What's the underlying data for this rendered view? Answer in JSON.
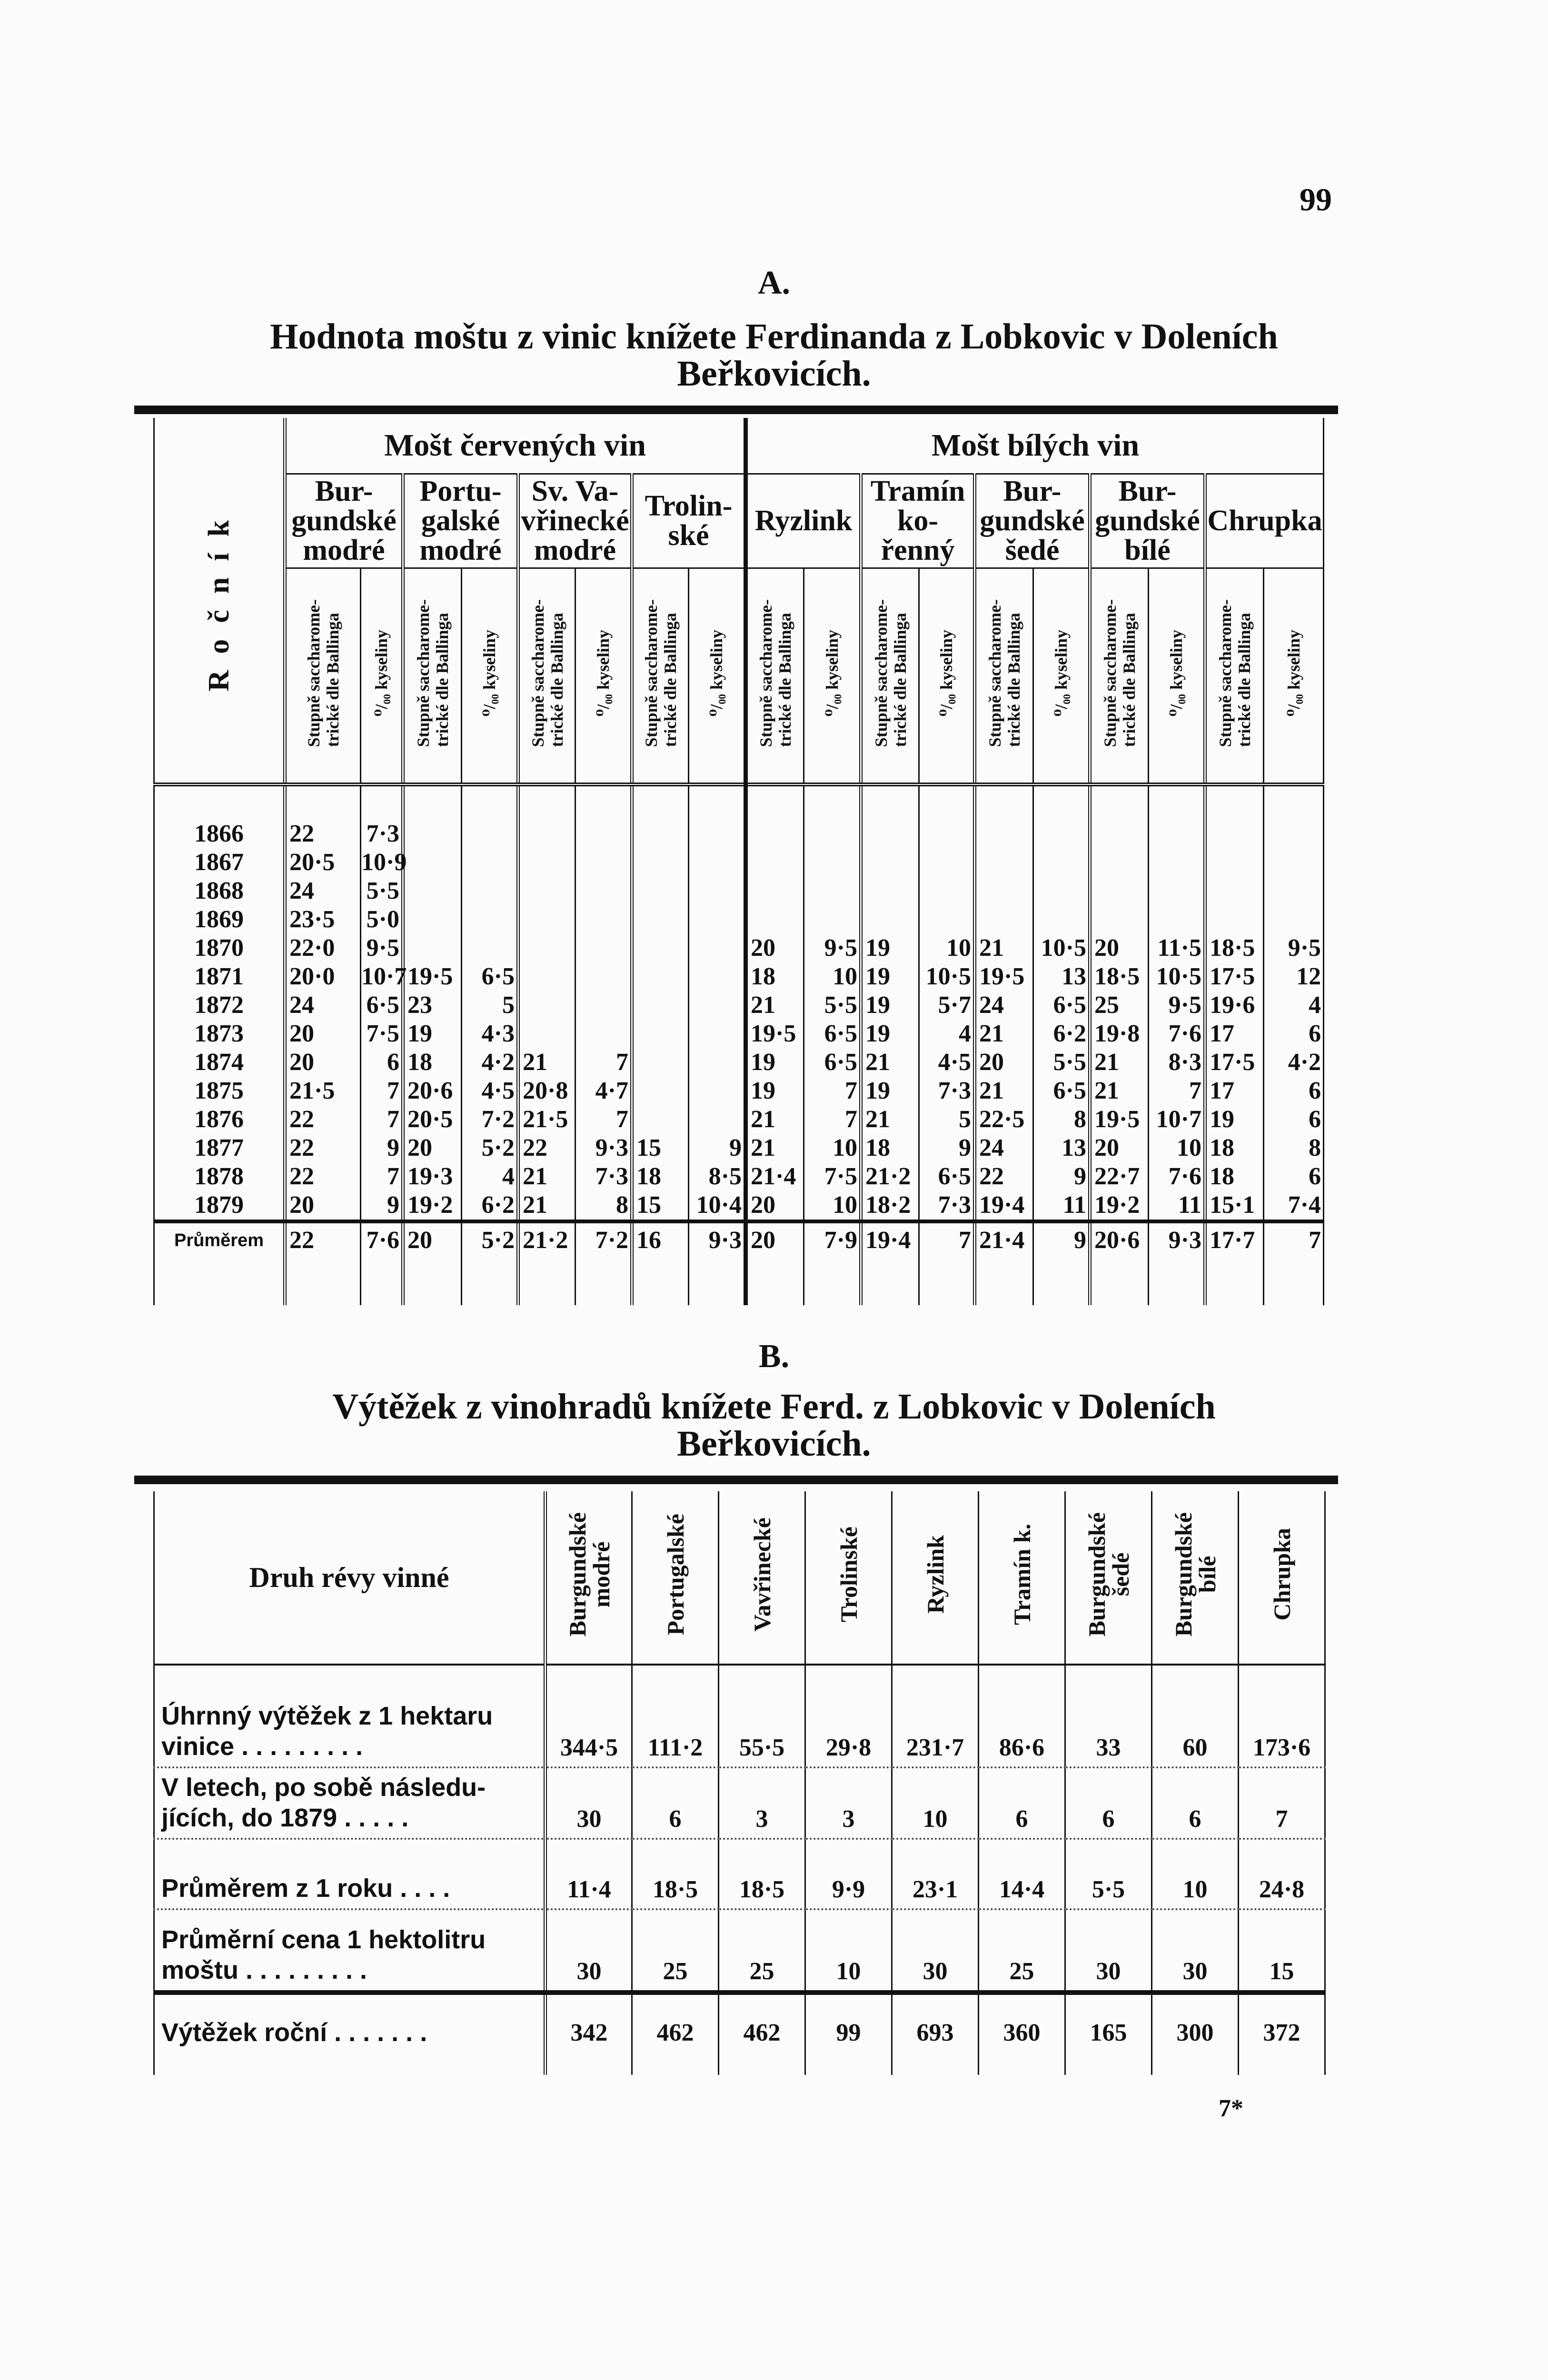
{
  "page_number": "99",
  "section_a": {
    "letter": "A.",
    "title_line1": "Hodnota moštu z vinic knížete Ferdinanda z Lobkovic v Doleních",
    "title_line2": "Beřkovicích.",
    "table": {
      "row_header": "Ročník",
      "groups": [
        "Mošt červených vin",
        "Mošt bílých vin"
      ],
      "varieties": [
        "Bur-\ngundské\nmodré",
        "Portu-\ngalské\nmodré",
        "Sv. Va-\nvřinecké\nmodré",
        "Trolin-\nské",
        "Ryzlink",
        "Tramín\nko-\nřenný",
        "Bur-\ngundské\nšedé",
        "Bur-\ngundské\nbílé",
        "Chrupka"
      ],
      "sub_headers": {
        "sugar": "Stupně saccharome-\ntrické dle Ballinga",
        "acid": "⁰/₀₀ kyseliny"
      },
      "rows": [
        {
          "year": "1866",
          "values": [
            "22",
            "7·3",
            "",
            "",
            "",
            "",
            "",
            "",
            "",
            "",
            "",
            "",
            "",
            "",
            "",
            "",
            "",
            ""
          ]
        },
        {
          "year": "1867",
          "values": [
            "20·5",
            "10·9",
            "",
            "",
            "",
            "",
            "",
            "",
            "",
            "",
            "",
            "",
            "",
            "",
            "",
            "",
            "",
            ""
          ]
        },
        {
          "year": "1868",
          "values": [
            "24",
            "5·5",
            "",
            "",
            "",
            "",
            "",
            "",
            "",
            "",
            "",
            "",
            "",
            "",
            "",
            "",
            "",
            ""
          ]
        },
        {
          "year": "1869",
          "values": [
            "23·5",
            "5·0",
            "",
            "",
            "",
            "",
            "",
            "",
            "",
            "",
            "",
            "",
            "",
            "",
            "",
            "",
            "",
            ""
          ]
        },
        {
          "year": "1870",
          "values": [
            "22·0",
            "9·5",
            "",
            "",
            "",
            "",
            "",
            "",
            "20",
            "9·5",
            "19",
            "10",
            "21",
            "10·5",
            "20",
            "11·5",
            "18·5",
            "9·5"
          ]
        },
        {
          "year": "1871",
          "values": [
            "20·0",
            "10·7",
            "19·5",
            "6·5",
            "",
            "",
            "",
            "",
            "18",
            "10",
            "19",
            "10·5",
            "19·5",
            "13",
            "18·5",
            "10·5",
            "17·5",
            "12"
          ]
        },
        {
          "year": "1872",
          "values": [
            "24",
            "6·5",
            "23",
            "5",
            "",
            "",
            "",
            "",
            "21",
            "5·5",
            "19",
            "5·7",
            "24",
            "6·5",
            "25",
            "9·5",
            "19·6",
            "4"
          ]
        },
        {
          "year": "1873",
          "values": [
            "20",
            "7·5",
            "19",
            "4·3",
            "",
            "",
            "",
            "",
            "19·5",
            "6·5",
            "19",
            "4",
            "21",
            "6·2",
            "19·8",
            "7·6",
            "17",
            "6"
          ]
        },
        {
          "year": "1874",
          "values": [
            "20",
            "6",
            "18",
            "4·2",
            "21",
            "7",
            "",
            "",
            "19",
            "6·5",
            "21",
            "4·5",
            "20",
            "5·5",
            "21",
            "8·3",
            "17·5",
            "4·2"
          ]
        },
        {
          "year": "1875",
          "values": [
            "21·5",
            "7",
            "20·6",
            "4·5",
            "20·8",
            "4·7",
            "",
            "",
            "19",
            "7",
            "19",
            "7·3",
            "21",
            "6·5",
            "21",
            "7",
            "17",
            "6"
          ]
        },
        {
          "year": "1876",
          "values": [
            "22",
            "7",
            "20·5",
            "7·2",
            "21·5",
            "7",
            "",
            "",
            "21",
            "7",
            "21",
            "5",
            "22·5",
            "8",
            "19·5",
            "10·7",
            "19",
            "6"
          ]
        },
        {
          "year": "1877",
          "values": [
            "22",
            "9",
            "20",
            "5·2",
            "22",
            "9·3",
            "15",
            "9",
            "21",
            "10",
            "18",
            "9",
            "24",
            "13",
            "20",
            "10",
            "18",
            "8"
          ]
        },
        {
          "year": "1878",
          "values": [
            "22",
            "7",
            "19·3",
            "4",
            "21",
            "7·3",
            "18",
            "8·5",
            "21·4",
            "7·5",
            "21·2",
            "6·5",
            "22",
            "9",
            "22·7",
            "7·6",
            "18",
            "6"
          ]
        },
        {
          "year": "1879",
          "values": [
            "20",
            "9",
            "19·2",
            "6·2",
            "21",
            "8",
            "15",
            "10·4",
            "20",
            "10",
            "18·2",
            "7·3",
            "19·4",
            "11",
            "19·2",
            "11",
            "15·1",
            "7·4"
          ]
        }
      ],
      "average": {
        "label": "Průměrem",
        "values": [
          "22",
          "7·6",
          "20",
          "5·2",
          "21·2",
          "7·2",
          "16",
          "9·3",
          "20",
          "7·9",
          "19·4",
          "7",
          "21·4",
          "9",
          "20·6",
          "9·3",
          "17·7",
          "7"
        ]
      }
    }
  },
  "section_b": {
    "letter": "B.",
    "title_line1": "Výtěžek z vinohradů knížete Ferd. z Lobkovic v Doleních",
    "title_line2": "Beřkovicích.",
    "table": {
      "row_header": "Druh révy vinné",
      "columns": [
        "Burgundské\nmodré",
        "Portugalské",
        "Vavřinecké",
        "Trolinské",
        "Ryzlink",
        "Tramín k.",
        "Burgundské\nšedé",
        "Burgundské\nbílé",
        "Chrupka"
      ],
      "rows": [
        {
          "label": "Úhrnný výtěžek z 1 hektaru\n   vinice . . . . . . . . .",
          "values": [
            "344·5",
            "111·2",
            "55·5",
            "29·8",
            "231·7",
            "86·6",
            "33",
            "60",
            "173·6"
          ]
        },
        {
          "label": "V letech, po sobě následu-\n   jících, do 1879 . . . . .",
          "values": [
            "30",
            "6",
            "3",
            "3",
            "10",
            "6",
            "6",
            "6",
            "7"
          ]
        },
        {
          "label": "Průměrem z 1 roku . . . .",
          "values": [
            "11·4",
            "18·5",
            "18·5",
            "9·9",
            "23·1",
            "14·4",
            "5·5",
            "10",
            "24·8"
          ]
        },
        {
          "label": "Průměrní cena 1 hektolitru\n   moštu . . . . . . . . .",
          "values": [
            "30",
            "25",
            "25",
            "10",
            "30",
            "25",
            "30",
            "30",
            "15"
          ]
        },
        {
          "label": "Výtěžek roční . . . . . . .",
          "values": [
            "342",
            "462",
            "462",
            "99",
            "693",
            "360",
            "165",
            "300",
            "372"
          ]
        }
      ]
    }
  },
  "footer_signature": "7*"
}
